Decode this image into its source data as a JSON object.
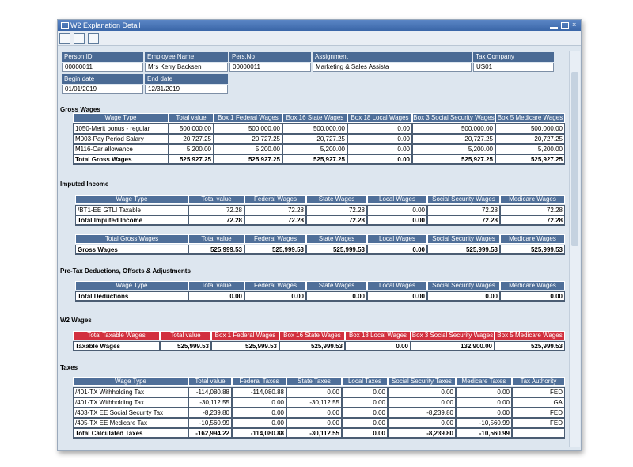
{
  "window": {
    "title": "W2 Explanation Detail"
  },
  "header_fields": [
    {
      "label": "Person ID",
      "value": "00000011"
    },
    {
      "label": "Employee Name",
      "value": "Mrs Kerry Backsen"
    },
    {
      "label": "Pers.No",
      "value": "00000011"
    },
    {
      "label": "Assignment",
      "value": "Marketing & Sales Assista"
    },
    {
      "label": "Tax Company",
      "value": "US01"
    },
    {
      "label": "Begin date",
      "value": "01/01/2019"
    },
    {
      "label": "End date",
      "value": "12/31/2019"
    }
  ],
  "sections": [
    {
      "title": "Gross Wages",
      "tables": [
        {
          "columns": [
            "Wage Type",
            "Total value",
            "Box 1 Federal Wages",
            "Box 16 State Wages",
            "Box 18 Local Wages",
            "Box 3 Social Security Wages",
            "Box 5 Medicare Wages"
          ],
          "rows": [
            [
              "1050-Merit bonus - regular",
              "500,000.00",
              "500,000.00",
              "500,000.00",
              "0.00",
              "500,000.00",
              "500,000.00"
            ],
            [
              "M003-Pay Period Salary",
              "20,727.25",
              "20,727.25",
              "20,727.25",
              "0.00",
              "20,727.25",
              "20,727.25"
            ],
            [
              "M116-Car allowance",
              "5,200.00",
              "5,200.00",
              "5,200.00",
              "0.00",
              "5,200.00",
              "5,200.00"
            ]
          ],
          "total": [
            "Total Gross Wages",
            "525,927.25",
            "525,927.25",
            "525,927.25",
            "0.00",
            "525,927.25",
            "525,927.25"
          ]
        }
      ]
    },
    {
      "title": "Imputed Income",
      "tables": [
        {
          "columns": [
            "Wage Type",
            "Total value",
            "Federal Wages",
            "State Wages",
            "Local Wages",
            "Social Security Wages",
            "Medicare Wages"
          ],
          "rows": [
            [
              "/BT1-EE GTLI Taxable",
              "72.28",
              "72.28",
              "72.28",
              "0.00",
              "72.28",
              "72.28"
            ]
          ],
          "total": [
            "Total Imputed Income",
            "72.28",
            "72.28",
            "72.28",
            "0.00",
            "72.28",
            "72.28"
          ]
        },
        {
          "columns": [
            "Total Gross Wages",
            "Total value",
            "Federal Wages",
            "State Wages",
            "Local Wages",
            "Social Security Wages",
            "Medicare Wages"
          ],
          "rows": [],
          "total": [
            "Gross Wages",
            "525,999.53",
            "525,999.53",
            "525,999.53",
            "0.00",
            "525,999.53",
            "525,999.53"
          ]
        }
      ]
    },
    {
      "title": "Pre-Tax Deductions, Offsets & Adjustments",
      "tables": [
        {
          "columns": [
            "Wage Type",
            "Total value",
            "Federal Wages",
            "State Wages",
            "Local Wages",
            "Social Security Wages",
            "Medicare Wages"
          ],
          "rows": [],
          "total": [
            "Total Deductions",
            "0.00",
            "0.00",
            "0.00",
            "0.00",
            "0.00",
            "0.00"
          ]
        }
      ]
    },
    {
      "title": "W2 Wages",
      "tables": [
        {
          "columns": [
            "Total Taxable Wages",
            "Total value",
            "Box 1 Federal Wages",
            "Box 16 State Wages",
            "Box 18 Local Wages",
            "Box 3 Social Security Wages",
            "Box 5 Medicare Wages"
          ],
          "header_color": "#d2303e",
          "rows": [],
          "total": [
            "Taxable Wages",
            "525,999.53",
            "525,999.53",
            "525,999.53",
            "0.00",
            "132,900.00",
            "525,999.53"
          ]
        }
      ]
    },
    {
      "title": "Taxes",
      "tables": [
        {
          "columns": [
            "Wage Type",
            "Total value",
            "Federal Taxes",
            "State Taxes",
            "Local Taxes",
            "Social Security Taxes",
            "Medicare Taxes",
            "Tax Authority"
          ],
          "rows": [
            [
              "/401-TX Withholding Tax",
              "-114,080.88",
              "-114,080.88",
              "0.00",
              "0.00",
              "0.00",
              "0.00",
              "FED"
            ],
            [
              "/401-TX Withholding Tax",
              "-30,112.55",
              "0.00",
              "-30,112.55",
              "0.00",
              "0.00",
              "0.00",
              "GA"
            ],
            [
              "/403-TX EE Social Security Tax",
              "-8,239.80",
              "0.00",
              "0.00",
              "0.00",
              "-8,239.80",
              "0.00",
              "FED"
            ],
            [
              "/405-TX EE Medicare Tax",
              "-10,560.99",
              "0.00",
              "0.00",
              "0.00",
              "0.00",
              "-10,560.99",
              "FED"
            ]
          ],
          "total": [
            "Total Calculated Taxes",
            "-162,994.22",
            "-114,080.88",
            "-30,112.55",
            "0.00",
            "-8,239.80",
            "-10,560.99"
          ]
        }
      ]
    }
  ]
}
